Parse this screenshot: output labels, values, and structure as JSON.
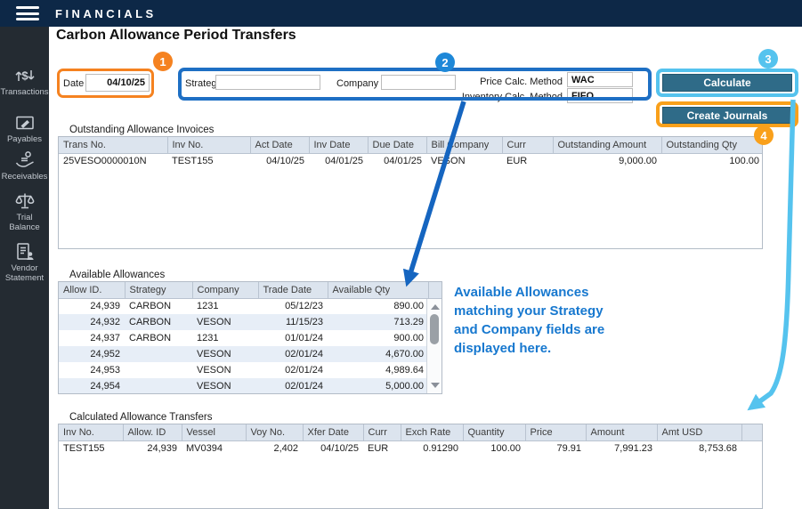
{
  "topbar": {
    "title": "FINANCIALS"
  },
  "sidebar": {
    "items": [
      {
        "label": "Transactions",
        "icon": "transactions-icon"
      },
      {
        "label": "Payables",
        "icon": "payables-icon"
      },
      {
        "label": "Receivables",
        "icon": "receivables-icon"
      },
      {
        "label": "Trial Balance",
        "icon": "trial-balance-icon"
      },
      {
        "label": "Vendor Statement",
        "icon": "vendor-statement-icon"
      }
    ]
  },
  "page": {
    "title": "Carbon Allowance Period Transfers"
  },
  "form": {
    "date_label": "Date",
    "date_value": "04/10/25",
    "strategy_label": "Strategy",
    "strategy_value": "",
    "company_label": "Company",
    "company_value": "",
    "price_calc_label": "Price Calc. Method",
    "price_calc_value": "WAC",
    "inventory_calc_label": "Inventory Calc. Method",
    "inventory_calc_value": "FIFO"
  },
  "buttons": {
    "calculate": "Calculate",
    "create_journals": "Create Journals"
  },
  "badges": {
    "step1": "1",
    "step2": "2",
    "step3": "3",
    "step4": "4"
  },
  "annotation": "Available Allowances matching your Strategy and Company fields are displayed here.",
  "tables": {
    "outstanding": {
      "title": "Outstanding Allowance Invoices",
      "headers": [
        "Trans No.",
        "Inv No.",
        "Act Date",
        "Inv Date",
        "Due Date",
        "Bill Company",
        "Curr",
        "Outstanding Amount",
        "Outstanding Qty"
      ],
      "rows": [
        [
          "25VESO0000010N",
          "TEST155",
          "04/10/25",
          "04/01/25",
          "04/01/25",
          "VESON",
          "EUR",
          "9,000.00",
          "100.00"
        ]
      ]
    },
    "available": {
      "title": "Available Allowances",
      "headers": [
        "Allow ID.",
        "Strategy",
        "Company",
        "Trade Date",
        "Available Qty"
      ],
      "rows": [
        [
          "24,939",
          "CARBON",
          "1231",
          "05/12/23",
          "890.00"
        ],
        [
          "24,932",
          "CARBON",
          "VESON",
          "11/15/23",
          "713.29"
        ],
        [
          "24,937",
          "CARBON",
          "1231",
          "01/01/24",
          "900.00"
        ],
        [
          "24,952",
          "",
          "VESON",
          "02/01/24",
          "4,670.00"
        ],
        [
          "24,953",
          "",
          "VESON",
          "02/01/24",
          "4,989.64"
        ],
        [
          "24,954",
          "",
          "VESON",
          "02/01/24",
          "5,000.00"
        ]
      ]
    },
    "calculated": {
      "title": "Calculated Allowance Transfers",
      "headers": [
        "Inv No.",
        "Allow. ID",
        "Vessel",
        "Voy No.",
        "Xfer Date",
        "Curr",
        "Exch Rate",
        "Quantity",
        "Price",
        "Amount",
        "Amt USD"
      ],
      "rows": [
        [
          "TEST155",
          "24,939",
          "MV0394",
          "2,402",
          "04/10/25",
          "EUR",
          "0.91290",
          "100.00",
          "79.91",
          "7,991.23",
          "8,753.68"
        ]
      ]
    }
  },
  "colors": {
    "topbar_bg": "#0d2847",
    "sidebar_bg": "#242b32",
    "accent_orange": "#f58220",
    "accent_yellow_orange": "#f9a01b",
    "accent_blue": "#1e6fc4",
    "accent_cyan": "#55c3ee",
    "badge_blue": "#1e88d8",
    "annotation_blue": "#1778cf",
    "button_bg": "#2f6b88",
    "table_header_bg": "#dce4ee",
    "row_alt_bg": "#e7eef7"
  }
}
